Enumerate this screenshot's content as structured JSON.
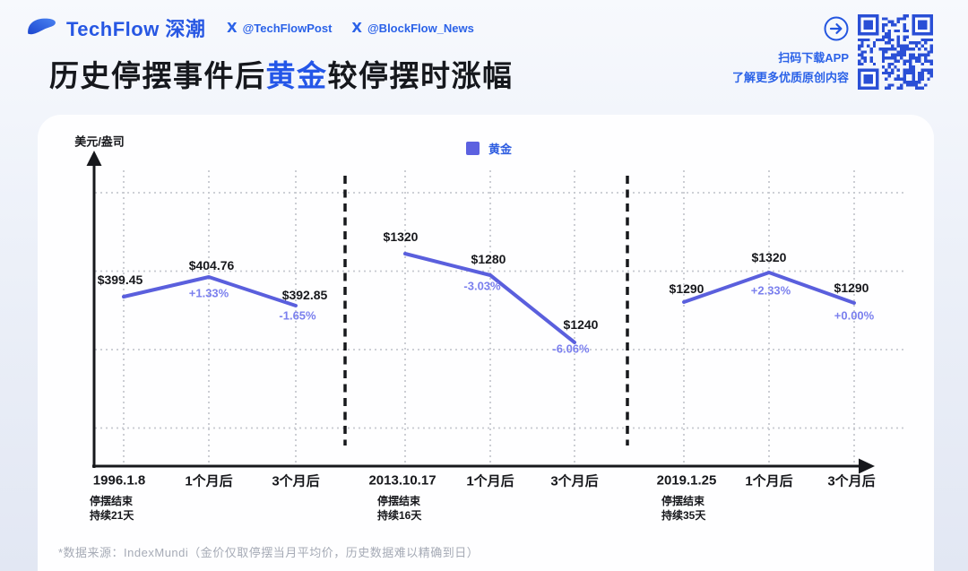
{
  "header": {
    "brand": "TechFlow 深潮",
    "handles": [
      {
        "label": "@TechFlowPost"
      },
      {
        "label": "@BlockFlow_News"
      }
    ],
    "qr_caption_line1": "扫码下载APP",
    "qr_caption_line2": "了解更多优质原创内容"
  },
  "title": {
    "prefix": "历史停摆事件后",
    "highlight": "黄金",
    "suffix": "较停摆时涨幅"
  },
  "chart_data": {
    "type": "line",
    "title": "历史停摆事件后黄金较停摆时涨幅",
    "ylabel": "美元/盎司",
    "grid": true,
    "legend_position": "top-center",
    "legend": [
      {
        "label": "黄金",
        "color": "#5c61e0"
      }
    ],
    "groups": [
      {
        "event_date": "1996.1.8",
        "note_line1": "停摆结束",
        "note_line2": "持续21天",
        "categories": [
          "1996.1.8",
          "1个月后",
          "3个月后"
        ],
        "values": [
          399.45,
          404.76,
          392.85
        ],
        "price_labels": [
          "$399.45",
          "$404.76",
          "$392.85"
        ],
        "pct_labels": [
          null,
          "+1.33%",
          "-1.65%"
        ]
      },
      {
        "event_date": "2013.10.17",
        "note_line1": "停摆结束",
        "note_line2": "持续16天",
        "categories": [
          "2013.10.17",
          "1个月后",
          "3个月后"
        ],
        "values": [
          1320,
          1280,
          1240
        ],
        "price_labels": [
          "$1320",
          "$1280",
          "$1240"
        ],
        "pct_labels": [
          null,
          "-3.03%",
          "-6.06%"
        ]
      },
      {
        "event_date": "2019.1.25",
        "note_line1": "停摆结束",
        "note_line2": "持续35天",
        "categories": [
          "2019.1.25",
          "1个月后",
          "3个月后"
        ],
        "values": [
          1290,
          1320,
          1290
        ],
        "price_labels": [
          "$1290",
          "$1320",
          "$1290"
        ],
        "pct_labels": [
          null,
          "+2.33%",
          "+0.00%"
        ]
      }
    ]
  },
  "footer": {
    "note": "*数据来源：IndexMundi（金价仅取停摆当月平均价，历史数据难以精确到日）"
  },
  "colors": {
    "brand_blue": "#2757e3",
    "line": "#5a5fdd",
    "pct_text": "#7b80ee",
    "grid_gray": "#c6c9d0",
    "axis_black": "#17181c",
    "qr_blue": "#2a4fd6"
  }
}
